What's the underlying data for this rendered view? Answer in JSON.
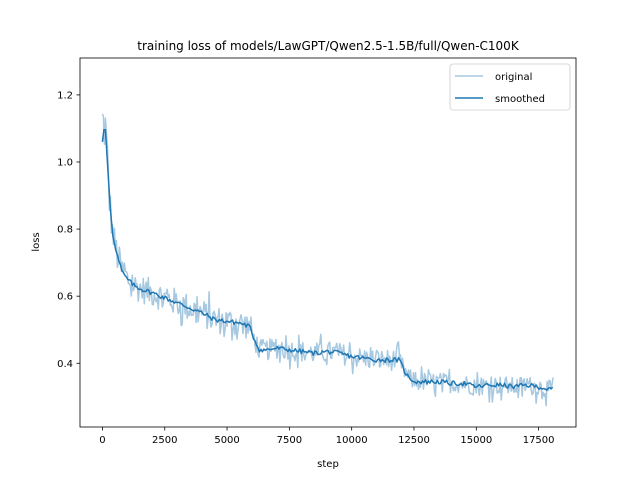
{
  "chart_data": {
    "type": "line",
    "title": "training loss of models/LawGPT/Qwen2.5-1.5B/full/Qwen-C100K",
    "xlabel": "step",
    "ylabel": "loss",
    "xlim": [
      -900,
      19000
    ],
    "ylim": [
      0.21,
      1.31
    ],
    "grid": false,
    "legend_position": "top-right",
    "x_ticks": [
      0,
      2500,
      5000,
      7500,
      10000,
      12500,
      15000,
      17500
    ],
    "x_tick_labels": [
      "0",
      "2500",
      "5000",
      "7500",
      "10000",
      "12500",
      "15000",
      "17500"
    ],
    "y_ticks": [
      0.4,
      0.6,
      0.8,
      1.0,
      1.2
    ],
    "y_tick_labels": [
      "0.4",
      "0.6",
      "0.8",
      "1.0",
      "1.2"
    ],
    "series": [
      {
        "name": "original",
        "color": "#a6c8e0",
        "description": "raw per-step loss, noisy around the smoothed curve",
        "noise_amplitude": [
          {
            "from": 0,
            "to": 300,
            "amp": 0.12
          },
          {
            "from": 300,
            "to": 1000,
            "amp": 0.07
          },
          {
            "from": 1000,
            "to": 6000,
            "amp": 0.06
          },
          {
            "from": 6000,
            "to": 12000,
            "amp": 0.045
          },
          {
            "from": 12000,
            "to": 18100,
            "amp": 0.04
          }
        ],
        "peaks": [
          {
            "x": 0,
            "y": 1.27
          }
        ]
      },
      {
        "name": "smoothed",
        "color": "#1f77b4",
        "x": [
          0,
          100,
          200,
          300,
          400,
          600,
          800,
          1000,
          1300,
          1600,
          2000,
          2500,
          3000,
          3500,
          4000,
          4500,
          5000,
          5500,
          5900,
          6100,
          6300,
          6600,
          7000,
          7500,
          8000,
          8500,
          9000,
          9500,
          10000,
          10500,
          11000,
          11500,
          11900,
          12100,
          12300,
          12600,
          13000,
          13500,
          14000,
          14500,
          15000,
          15500,
          16000,
          16500,
          17000,
          17500,
          18000,
          18100
        ],
        "y": [
          1.06,
          1.12,
          1.0,
          0.88,
          0.79,
          0.72,
          0.67,
          0.65,
          0.63,
          0.62,
          0.61,
          0.595,
          0.58,
          0.565,
          0.55,
          0.53,
          0.525,
          0.52,
          0.51,
          0.47,
          0.44,
          0.44,
          0.445,
          0.44,
          0.435,
          0.43,
          0.435,
          0.43,
          0.42,
          0.415,
          0.41,
          0.41,
          0.41,
          0.38,
          0.355,
          0.345,
          0.345,
          0.345,
          0.34,
          0.34,
          0.33,
          0.335,
          0.335,
          0.33,
          0.335,
          0.33,
          0.32,
          0.33
        ]
      }
    ]
  }
}
